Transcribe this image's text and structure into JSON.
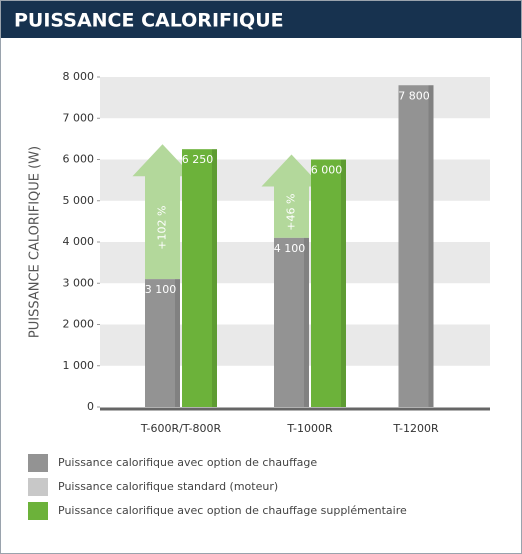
{
  "chart_data": {
    "type": "bar",
    "title": "PUISSANCE CALORIFIQUE",
    "y_label": "PUISSANCE CALORIFIQUE (W)",
    "categories": [
      "T-600R/T-800R",
      "T-1000R",
      "T-1200R"
    ],
    "series": [
      {
        "name": "Puissance calorifique avec option de chauffage",
        "color": "#939393",
        "values": [
          3100,
          4100,
          7800
        ],
        "value_labels": [
          "3 100",
          "4 100",
          "7 800"
        ]
      },
      {
        "name": "Puissance calorifique standard (moteur)",
        "color": "#c8c8c8",
        "values": [
          null,
          null,
          null
        ]
      },
      {
        "name": "Puissance calorifique avec option de chauffage supplémentaire",
        "color": "#6cb23a",
        "values": [
          6250,
          6000,
          null
        ],
        "value_labels": [
          "6 250",
          "6 000",
          null
        ]
      }
    ],
    "annotations": [
      "+102 %",
      "+46 %"
    ],
    "arrow_color": "#b3d89b",
    "ylim": [
      0,
      8000
    ],
    "yticks": [
      0,
      {
        "value": 1000,
        "label": "1 000"
      },
      {
        "value": 2000,
        "label": "2 000"
      },
      {
        "value": 3000,
        "label": "3 000"
      },
      {
        "value": 4000,
        "label": "4 000"
      },
      {
        "value": 5000,
        "label": "5 000"
      },
      {
        "value": 6000,
        "label": "6 000"
      },
      {
        "value": 7000,
        "label": "7 000"
      },
      {
        "value": 8000,
        "label": "8 000"
      }
    ],
    "grid": "bands",
    "band_color": "#e9e9e9"
  }
}
